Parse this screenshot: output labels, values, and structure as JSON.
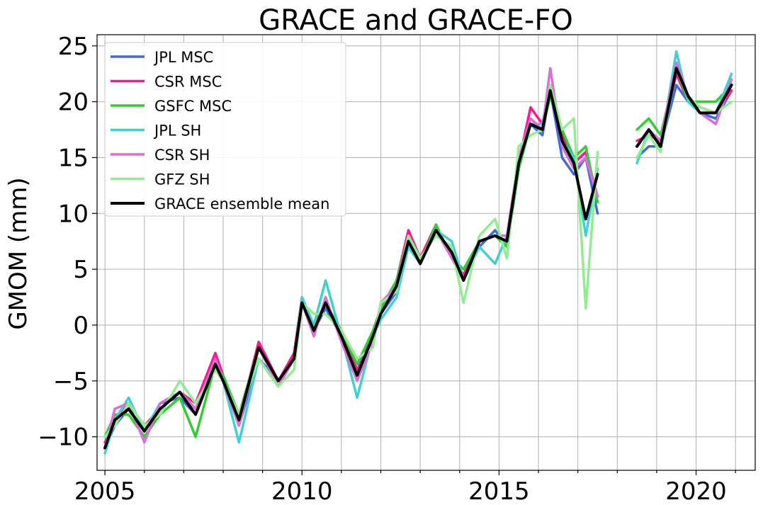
{
  "chart_data": {
    "type": "line",
    "title": "GRACE and GRACE-FO",
    "xlabel": "",
    "ylabel": "GMOM (mm)",
    "xlim": [
      2004.8,
      2021.5
    ],
    "ylim": [
      -13,
      26
    ],
    "xticks": [
      2005,
      2010,
      2015,
      2020
    ],
    "xtick_labels": [
      "2005",
      "2010",
      "2015",
      "2020"
    ],
    "yticks": [
      -10,
      -5,
      0,
      5,
      10,
      15,
      20,
      25
    ],
    "ytick_labels": [
      "−10",
      "−5",
      "0",
      "5",
      "10",
      "15",
      "20",
      "25"
    ],
    "grid": true,
    "legend_position": "top-left",
    "series": [
      {
        "name": "JPL MSC",
        "color": "#4169e1",
        "width": 3.5,
        "x": [
          2005.0,
          2005.25,
          2005.6,
          2006.0,
          2006.4,
          2006.9,
          2007.3,
          2007.8,
          2008.0,
          2008.4,
          2008.9,
          2009.4,
          2009.8,
          2010.0,
          2010.3,
          2010.6,
          2011.0,
          2011.4,
          2011.8,
          2012.0,
          2012.4,
          2012.7,
          2013.0,
          2013.4,
          2013.8,
          2014.1,
          2014.5,
          2014.9,
          2015.2,
          2015.5,
          2015.8,
          2016.1,
          2016.3,
          2016.6,
          2016.9,
          2017.2,
          2017.5,
          null,
          2018.5,
          2018.8,
          2019.1,
          2019.5,
          2019.8,
          2020.1,
          2020.5,
          2020.9
        ],
        "y": [
          -11,
          -9,
          -7.5,
          -9.5,
          -7,
          -6.5,
          -8,
          -3.5,
          -5,
          -9,
          -3,
          -5,
          -3,
          2,
          -0.5,
          1.5,
          -1,
          -4,
          -1,
          1,
          3,
          7,
          5.5,
          8.5,
          6.5,
          4,
          7,
          8.5,
          7,
          14,
          18,
          17,
          21,
          15,
          13.5,
          15,
          10,
          null,
          15,
          16,
          16,
          21.5,
          20,
          19,
          18.5,
          21
        ]
      },
      {
        "name": "CSR MSC",
        "color": "#ff1493",
        "width": 3.5,
        "x": [
          2005.0,
          2005.25,
          2005.6,
          2006.0,
          2006.4,
          2006.9,
          2007.3,
          2007.8,
          2008.0,
          2008.4,
          2008.9,
          2009.4,
          2009.8,
          2010.0,
          2010.3,
          2010.6,
          2011.0,
          2011.4,
          2011.8,
          2012.0,
          2012.4,
          2012.7,
          2013.0,
          2013.4,
          2013.8,
          2014.1,
          2014.5,
          2014.9,
          2015.2,
          2015.5,
          2015.8,
          2016.1,
          2016.3,
          2016.6,
          2016.9,
          2017.2,
          2017.5,
          null,
          2018.5,
          2018.8,
          2019.1,
          2019.5,
          2019.8,
          2020.1,
          2020.5,
          2020.9
        ],
        "y": [
          -10.5,
          -8.5,
          -7,
          -9,
          -7.5,
          -6,
          -7,
          -2.5,
          -4.5,
          -8.5,
          -1.5,
          -5,
          -2.5,
          2.5,
          -0.5,
          2,
          -1,
          -4,
          -1.5,
          1.5,
          4,
          8.5,
          6,
          9,
          6,
          4.5,
          7.5,
          8,
          7.5,
          14.5,
          19.5,
          18,
          21.5,
          17,
          14.5,
          15.5,
          11.5,
          null,
          16.5,
          17,
          16.5,
          22.5,
          20,
          19.5,
          19,
          21
        ]
      },
      {
        "name": "GSFC MSC",
        "color": "#32cd32",
        "width": 3.5,
        "x": [
          2005.0,
          2005.25,
          2005.6,
          2006.0,
          2006.4,
          2006.9,
          2007.3,
          2007.8,
          2008.0,
          2008.4,
          2008.9,
          2009.4,
          2009.8,
          2010.0,
          2010.3,
          2010.6,
          2011.0,
          2011.4,
          2011.8,
          2012.0,
          2012.4,
          2012.7,
          2013.0,
          2013.4,
          2013.8,
          2014.1,
          2014.5,
          2014.9,
          2015.2,
          2015.5,
          2015.8,
          2016.1,
          2016.3,
          2016.6,
          2016.9,
          2017.2,
          2017.5,
          null,
          2018.5,
          2018.8,
          2019.1,
          2019.5,
          2019.8,
          2020.1,
          2020.5,
          2020.9
        ],
        "y": [
          -10,
          -8,
          -8,
          -10,
          -8,
          -6.5,
          -10,
          -3.5,
          -4.5,
          -8,
          -2,
          -5,
          -3,
          2,
          0,
          2,
          -0.5,
          -3.5,
          -0.5,
          1.5,
          4,
          8,
          5.5,
          9,
          6,
          5,
          7.5,
          8,
          7,
          14,
          18,
          17.5,
          20.5,
          17.5,
          15,
          16,
          11,
          null,
          17.5,
          18.5,
          17,
          23,
          20,
          20,
          20,
          21.5
        ]
      },
      {
        "name": "JPL SH",
        "color": "#40d0d0",
        "width": 3.5,
        "x": [
          2005.0,
          2005.25,
          2005.6,
          2006.0,
          2006.4,
          2006.9,
          2007.3,
          2007.8,
          2008.0,
          2008.4,
          2008.9,
          2009.4,
          2009.8,
          2010.0,
          2010.3,
          2010.6,
          2011.0,
          2011.4,
          2011.8,
          2012.0,
          2012.4,
          2012.7,
          2013.0,
          2013.4,
          2013.8,
          2014.1,
          2014.5,
          2014.9,
          2015.2,
          2015.5,
          2015.8,
          2016.1,
          2016.3,
          2016.6,
          2016.9,
          2017.2,
          2017.5,
          null,
          2018.5,
          2018.8,
          2019.1,
          2019.5,
          2019.8,
          2020.1,
          2020.5,
          2020.9
        ],
        "y": [
          -11.5,
          -8.5,
          -6.5,
          -9.5,
          -7,
          -6,
          -7.5,
          -3.5,
          -5,
          -10.5,
          -3,
          -5.5,
          -3,
          2.5,
          0,
          4,
          -1,
          -6.5,
          -1,
          0.5,
          2.5,
          7,
          5.5,
          8.5,
          7.5,
          4,
          7,
          5.5,
          8,
          14.5,
          18,
          18,
          21.5,
          16.5,
          15,
          8,
          14,
          null,
          14.5,
          17.5,
          16,
          24.5,
          20,
          19,
          19,
          22.5
        ]
      },
      {
        "name": "CSR SH",
        "color": "#da70d6",
        "width": 3.5,
        "x": [
          2005.0,
          2005.25,
          2005.6,
          2006.0,
          2006.4,
          2006.9,
          2007.3,
          2007.8,
          2008.0,
          2008.4,
          2008.9,
          2009.4,
          2009.8,
          2010.0,
          2010.3,
          2010.6,
          2011.0,
          2011.4,
          2011.8,
          2012.0,
          2012.4,
          2012.7,
          2013.0,
          2013.4,
          2013.8,
          2014.1,
          2014.5,
          2014.9,
          2015.2,
          2015.5,
          2015.8,
          2016.1,
          2016.3,
          2016.6,
          2016.9,
          2017.2,
          2017.5,
          null,
          2018.5,
          2018.8,
          2019.1,
          2019.5,
          2019.8,
          2020.1,
          2020.5,
          2020.9
        ],
        "y": [
          -11,
          -7.5,
          -7,
          -10.5,
          -7,
          -6,
          -7.5,
          -3,
          -5,
          -9,
          -2,
          -5.5,
          -3,
          2,
          -1,
          2.5,
          -1.5,
          -5,
          -1.5,
          2,
          3.5,
          8,
          5.5,
          8.5,
          6,
          4,
          7.5,
          8,
          8,
          15,
          18.5,
          17.5,
          23,
          16,
          14,
          15,
          11.5,
          null,
          16,
          17.5,
          16.5,
          23.5,
          20.5,
          19,
          18,
          22
        ]
      },
      {
        "name": "GFZ SH",
        "color": "#90ee90",
        "width": 3.5,
        "x": [
          2005.0,
          2005.25,
          2005.6,
          2006.0,
          2006.4,
          2006.9,
          2007.3,
          2007.8,
          2008.0,
          2008.4,
          2008.9,
          2009.4,
          2009.8,
          2010.0,
          2010.3,
          2010.6,
          2011.0,
          2011.4,
          2011.8,
          2012.0,
          2012.4,
          2012.7,
          2013.0,
          2013.4,
          2013.8,
          2014.1,
          2014.5,
          2014.9,
          2015.2,
          2015.5,
          2015.8,
          2016.1,
          2016.3,
          2016.6,
          2016.9,
          2017.2,
          2017.5,
          null,
          2018.5,
          2018.8,
          2019.1,
          2019.5,
          2019.8,
          2020.1,
          2020.5,
          2020.9
        ],
        "y": [
          -10,
          -9,
          -7,
          -9,
          -8,
          -5,
          -7,
          -4,
          -5,
          -8,
          -3,
          -5.5,
          -4,
          2,
          1,
          1,
          -0.5,
          -3,
          -2,
          2,
          3,
          8,
          6,
          8,
          7,
          2,
          8,
          9.5,
          6,
          16,
          17,
          17.5,
          21.5,
          17.5,
          18.5,
          1.5,
          15.5,
          null,
          15,
          17,
          15.5,
          23,
          20.5,
          19.5,
          19,
          20
        ]
      },
      {
        "name": "GRACE ensemble mean",
        "color": "#000000",
        "width": 4,
        "x": [
          2005.0,
          2005.25,
          2005.6,
          2006.0,
          2006.4,
          2006.9,
          2007.3,
          2007.8,
          2008.0,
          2008.4,
          2008.9,
          2009.4,
          2009.8,
          2010.0,
          2010.3,
          2010.6,
          2011.0,
          2011.4,
          2011.8,
          2012.0,
          2012.4,
          2012.7,
          2013.0,
          2013.4,
          2013.8,
          2014.1,
          2014.5,
          2014.9,
          2015.2,
          2015.5,
          2015.8,
          2016.1,
          2016.3,
          2016.6,
          2016.9,
          2017.2,
          2017.5,
          null,
          2018.5,
          2018.8,
          2019.1,
          2019.5,
          2019.8,
          2020.1,
          2020.5,
          2020.9
        ],
        "y": [
          -11,
          -8.5,
          -7.5,
          -9.5,
          -7.5,
          -6,
          -8,
          -3.5,
          -5,
          -8.5,
          -2,
          -5,
          -3,
          2,
          -0.5,
          2,
          -1,
          -4.5,
          -1,
          1,
          3.5,
          7.5,
          5.5,
          8.5,
          6.5,
          4,
          7.5,
          8,
          7.5,
          14.5,
          18,
          17.5,
          21,
          16.5,
          14.5,
          9.5,
          13.5,
          null,
          16,
          17.5,
          16,
          23,
          20.5,
          19,
          19,
          21.5
        ]
      }
    ]
  }
}
